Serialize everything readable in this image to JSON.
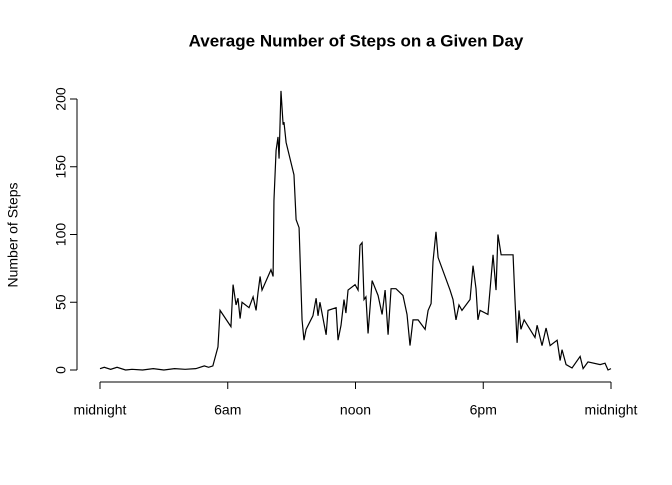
{
  "chart_data": {
    "type": "line",
    "title": "Average Number of Steps on a Given Day",
    "y_label": "Number of Steps",
    "xlim": [
      0,
      24
    ],
    "ylim": [
      0,
      200
    ],
    "xticks": [
      {
        "value": 0,
        "label": "midnight"
      },
      {
        "value": 6,
        "label": "6am"
      },
      {
        "value": 12,
        "label": "noon"
      },
      {
        "value": 18,
        "label": "6pm"
      },
      {
        "value": 24,
        "label": "midnight"
      }
    ],
    "yticks": [
      0,
      50,
      100,
      150,
      200
    ],
    "color": "#000000",
    "x": [
      0,
      0.2,
      0.5,
      0.8,
      1.2,
      1.5,
      2,
      2.5,
      3,
      3.5,
      4,
      4.5,
      4.9,
      5.1,
      5.3,
      5.54,
      5.64,
      6.15,
      6.25,
      6.39,
      6.48,
      6.58,
      6.67,
      7.0,
      7.19,
      7.33,
      7.42,
      7.52,
      7.61,
      8.03,
      8.13,
      8.17,
      8.27,
      8.36,
      8.41,
      8.5,
      8.6,
      8.64,
      8.74,
      9.11,
      9.21,
      9.35,
      9.49,
      9.58,
      9.68,
      10.0,
      10.15,
      10.24,
      10.33,
      10.62,
      10.71,
      11.09,
      11.18,
      11.32,
      11.46,
      11.55,
      11.65,
      11.98,
      12.12,
      12.21,
      12.31,
      12.4,
      12.49,
      12.59,
      12.78,
      13.06,
      13.25,
      13.39,
      13.53,
      13.67,
      13.9,
      14.23,
      14.42,
      14.56,
      14.7,
      14.94,
      15.27,
      15.41,
      15.55,
      15.64,
      15.78,
      15.88,
      16.44,
      16.58,
      16.72,
      16.86,
      17.0,
      17.38,
      17.52,
      17.66,
      17.75,
      17.85,
      18.22,
      18.46,
      18.6,
      18.69,
      18.84,
      19.4,
      19.49,
      19.59,
      19.68,
      19.77,
      19.92,
      20.43,
      20.53,
      20.76,
      20.95,
      21.14,
      21.47,
      21.61,
      21.7,
      21.89,
      22.17,
      22.55,
      22.69,
      22.92,
      23.49,
      23.72,
      23.86,
      24
    ],
    "values": [
      1,
      2,
      0.5,
      2,
      0,
      0.5,
      0,
      1,
      0,
      1,
      0.5,
      1,
      3,
      2,
      3,
      17,
      44,
      32,
      63,
      48,
      53,
      38,
      50,
      46,
      54,
      44,
      57,
      69,
      59,
      74,
      69,
      125,
      162,
      172,
      156,
      206,
      181,
      183,
      168,
      144,
      111,
      105,
      37,
      22,
      30,
      40,
      53,
      40,
      50,
      26,
      44,
      46,
      22,
      33,
      52,
      42,
      59,
      63,
      59,
      92,
      94,
      52,
      54,
      27,
      66,
      55,
      41,
      59,
      26,
      60,
      60,
      55,
      41,
      18,
      37,
      37,
      30,
      44,
      49,
      80,
      102,
      83,
      59,
      52,
      37,
      48,
      44,
      52,
      77,
      60,
      37,
      44,
      41,
      85,
      59,
      100,
      85,
      85,
      52,
      20,
      44,
      30,
      37,
      24,
      33,
      18,
      31,
      18,
      22,
      7,
      15,
      4,
      1.5,
      10,
      1,
      6,
      4,
      5,
      0,
      1
    ]
  }
}
